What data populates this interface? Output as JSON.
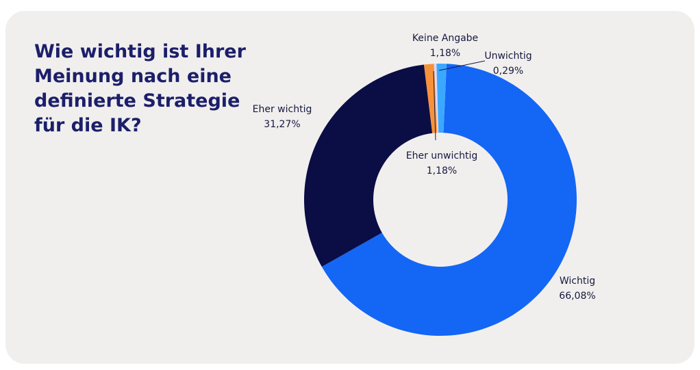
{
  "chart_data": {
    "type": "donut",
    "title": "Wie wichtig ist Ihrer Meinung nach eine definierte Strategie für die IK?",
    "categories": [
      "Wichtig",
      "Eher wichtig",
      "Eher unwichtig",
      "Unwichtig",
      "Keine Angabe"
    ],
    "values": [
      66.08,
      31.27,
      1.18,
      0.29,
      1.18
    ],
    "value_labels": [
      "66,08%",
      "31,27%",
      "1,18%",
      "0,29%",
      "1,18%"
    ],
    "colors": [
      "#1466f5",
      "#0b0d45",
      "#f7923a",
      "#dcd8f2",
      "#3aa8ff"
    ]
  }
}
